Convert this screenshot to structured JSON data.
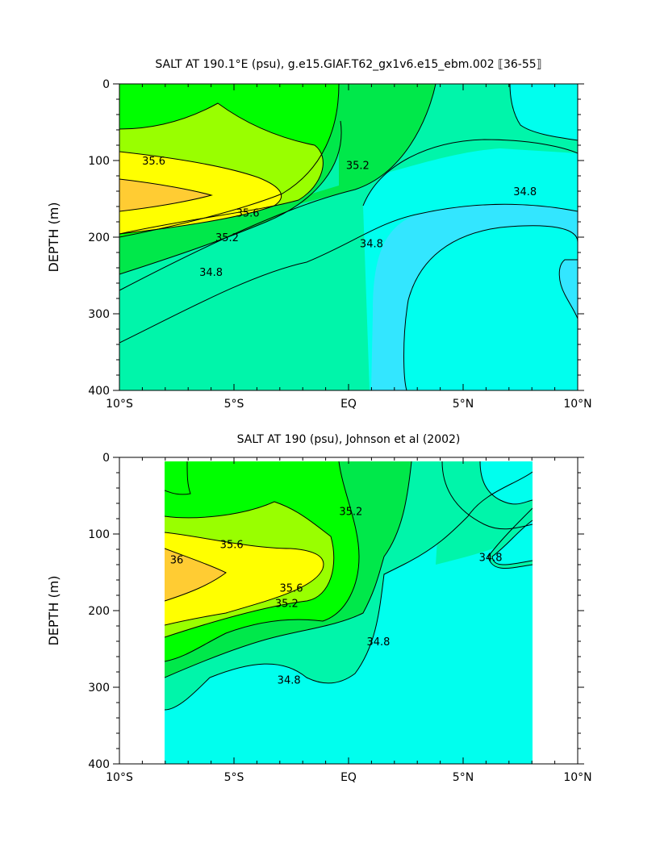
{
  "chart_data": [
    {
      "type": "contour",
      "title": "SALT AT 190.1°E (psu), g.e15.GIAF.T62_gx1v6.e15_ebm.002 ⟦36-55⟧",
      "xlabel": "",
      "ylabel": "DEPTH (m)",
      "x_unit": "degrees latitude",
      "y_unit": "m",
      "xlim": [
        -10,
        10
      ],
      "ylim": [
        400,
        0
      ],
      "x_ticks": [
        -10,
        -5,
        0,
        5,
        10
      ],
      "x_tick_labels": [
        "10°S",
        "5°S",
        "EQ",
        "5°N",
        "10°N"
      ],
      "y_ticks": [
        0,
        100,
        200,
        300,
        400
      ],
      "y_tick_labels": [
        "0",
        "100",
        "200",
        "300",
        "400"
      ],
      "data_extent": {
        "lat": [
          -10,
          10
        ],
        "depth": [
          0,
          400
        ]
      },
      "contour_levels": [
        34.6,
        34.8,
        35.0,
        35.2,
        35.4,
        35.6,
        35.8,
        36.0
      ],
      "level_colors": {
        "34.4-34.6": "#33e6ff",
        "34.6-34.8": "#00ffee",
        "34.8-35.0": "#00f5aa",
        "35.0-35.2": "#00e84a",
        "35.2-35.4": "#00ff00",
        "35.4-35.6": "#99ff00",
        "35.6-35.8": "#ffff00",
        "35.8-36.0": "#ffcc33"
      },
      "labels": [
        {
          "text": "35.6",
          "lat": -8.5,
          "depth": 100
        },
        {
          "text": "35.6",
          "lat": -4.4,
          "depth": 168
        },
        {
          "text": "35.2",
          "lat": -5.3,
          "depth": 200
        },
        {
          "text": "35.2",
          "lat": 0.4,
          "depth": 106
        },
        {
          "text": "34.8",
          "lat": -6.0,
          "depth": 245
        },
        {
          "text": "34.8",
          "lat": 1.0,
          "depth": 208
        },
        {
          "text": "34.8",
          "lat": 7.7,
          "depth": 140
        }
      ]
    },
    {
      "type": "contour",
      "title": "SALT AT 190 (psu), Johnson et al (2002)",
      "xlabel": "",
      "ylabel": "DEPTH (m)",
      "x_unit": "degrees latitude",
      "y_unit": "m",
      "xlim": [
        -10,
        10
      ],
      "ylim": [
        400,
        0
      ],
      "x_ticks": [
        -10,
        -5,
        0,
        5,
        10
      ],
      "x_tick_labels": [
        "10°S",
        "5°S",
        "EQ",
        "5°N",
        "10°N"
      ],
      "y_ticks": [
        0,
        100,
        200,
        300,
        400
      ],
      "y_tick_labels": [
        "0",
        "100",
        "200",
        "300",
        "400"
      ],
      "data_extent": {
        "lat": [
          -8,
          8
        ],
        "depth": [
          5,
          400
        ]
      },
      "contour_levels": [
        34.6,
        34.8,
        35.0,
        35.2,
        35.4,
        35.6,
        35.8,
        36.0
      ],
      "level_colors": {
        "34.6-34.8": "#00ffee",
        "34.8-35.0": "#00f5aa",
        "35.0-35.2": "#00e84a",
        "35.2-35.4": "#00ff00",
        "35.4-35.6": "#99ff00",
        "35.6-35.8": "#ffff00",
        "35.8-36.0": "#ffcc33"
      },
      "labels": [
        {
          "text": "35.6",
          "lat": -5.1,
          "depth": 113
        },
        {
          "text": "36",
          "lat": -7.5,
          "depth": 133
        },
        {
          "text": "35.6",
          "lat": -2.5,
          "depth": 170
        },
        {
          "text": "35.2",
          "lat": -2.7,
          "depth": 190
        },
        {
          "text": "35.2",
          "lat": 0.1,
          "depth": 70
        },
        {
          "text": "34.8",
          "lat": 1.3,
          "depth": 240
        },
        {
          "text": "34.8",
          "lat": -2.6,
          "depth": 290
        },
        {
          "text": "34.8",
          "lat": 6.2,
          "depth": 130
        }
      ]
    }
  ]
}
